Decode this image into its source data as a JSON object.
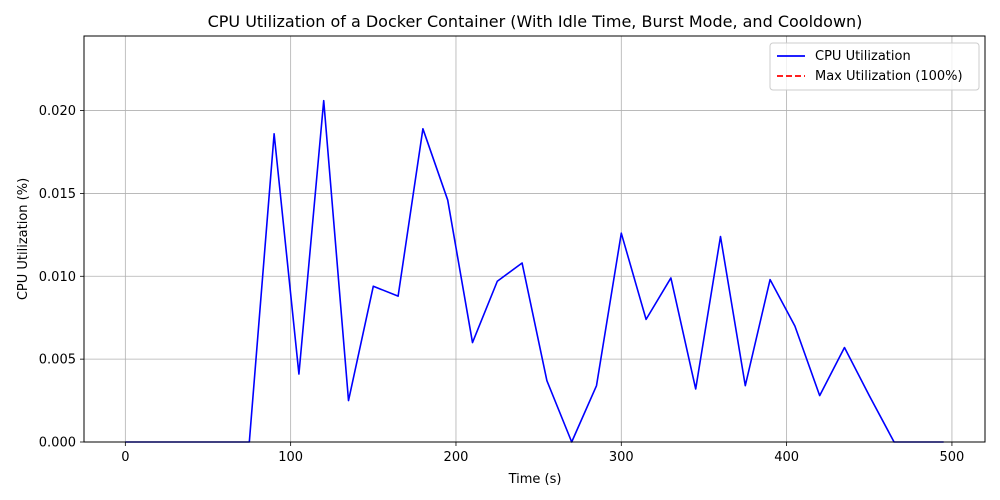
{
  "chart_data": {
    "type": "line",
    "title": "CPU Utilization of a Docker Container (With Idle Time, Burst Mode, and Cooldown)",
    "xlabel": "Time (s)",
    "ylabel": "CPU Utilization (%)",
    "xlim": [
      -25,
      520
    ],
    "ylim": [
      0,
      0.0245
    ],
    "x_ticks": [
      0,
      100,
      200,
      300,
      400,
      500
    ],
    "x_tick_labels": [
      "0",
      "100",
      "200",
      "300",
      "400",
      "500"
    ],
    "y_ticks": [
      0,
      0.005,
      0.01,
      0.015,
      0.02
    ],
    "y_tick_labels": [
      "0.000",
      "0.005",
      "0.010",
      "0.015",
      "0.020"
    ],
    "grid": true,
    "legend_position": "top-right",
    "series": [
      {
        "name": "CPU Utilization",
        "color": "#0000ff",
        "style": "solid",
        "x": [
          0,
          15,
          30,
          45,
          60,
          75,
          90,
          105,
          120,
          135,
          150,
          165,
          180,
          195,
          210,
          225,
          240,
          255,
          270,
          285,
          300,
          315,
          330,
          345,
          360,
          375,
          390,
          405,
          420,
          435,
          450,
          465,
          480,
          495
        ],
        "y": [
          0,
          0,
          0,
          0,
          0,
          0,
          0.0186,
          0.0041,
          0.0206,
          0.0025,
          0.0094,
          0.0088,
          0.0189,
          0.0146,
          0.006,
          0.0097,
          0.0108,
          0.0037,
          0.0,
          0.0034,
          0.0126,
          0.0074,
          0.0099,
          0.0032,
          0.0124,
          0.0034,
          0.0098,
          0.007,
          0.0028,
          0.0057,
          0.0028,
          0,
          0,
          0
        ]
      },
      {
        "name": "Max Utilization (100%)",
        "color": "#ff0000",
        "style": "dashed",
        "constant": 100
      }
    ]
  }
}
